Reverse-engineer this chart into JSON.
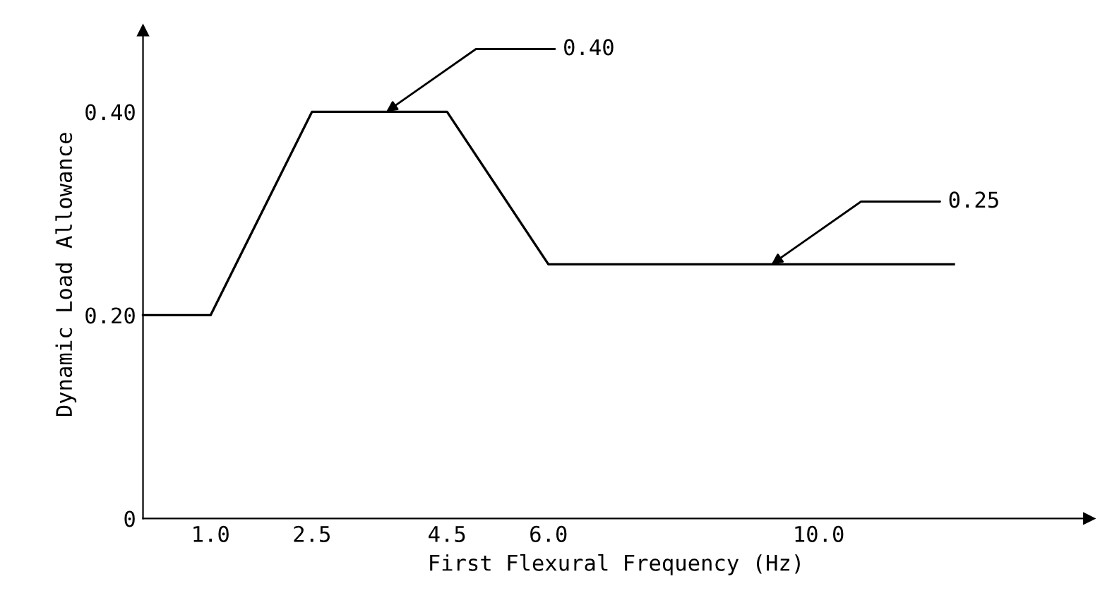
{
  "chart_data": {
    "type": "line",
    "xlabel": "First Flexural Frequency (Hz)",
    "ylabel": "Dynamic Load Allowance",
    "x": [
      0,
      1.0,
      2.5,
      4.5,
      6.0,
      12.0
    ],
    "series": [
      {
        "color": "#000000",
        "values": [
          0.2,
          0.2,
          0.4,
          0.4,
          0.25,
          0.25
        ]
      }
    ],
    "xlim": [
      0,
      14
    ],
    "ylim": [
      0,
      0.48
    ],
    "xticks": [
      {
        "value": 1.0,
        "label": "1.0"
      },
      {
        "value": 2.5,
        "label": "2.5"
      },
      {
        "value": 4.5,
        "label": "4.5"
      },
      {
        "value": 6.0,
        "label": "6.0"
      },
      {
        "value": 10.0,
        "label": "10.0"
      }
    ],
    "yticks": [
      0,
      {
        "value": 0.2,
        "label": "0.20"
      },
      {
        "value": 0.4,
        "label": "0.40"
      }
    ],
    "annotations": [
      {
        "text": "0.40",
        "x": 3.6,
        "y": 0.4
      },
      {
        "text": "0.25",
        "x": 9.3,
        "y": 0.25
      }
    ],
    "grid": false,
    "marker": "none",
    "line_style": "solid"
  }
}
